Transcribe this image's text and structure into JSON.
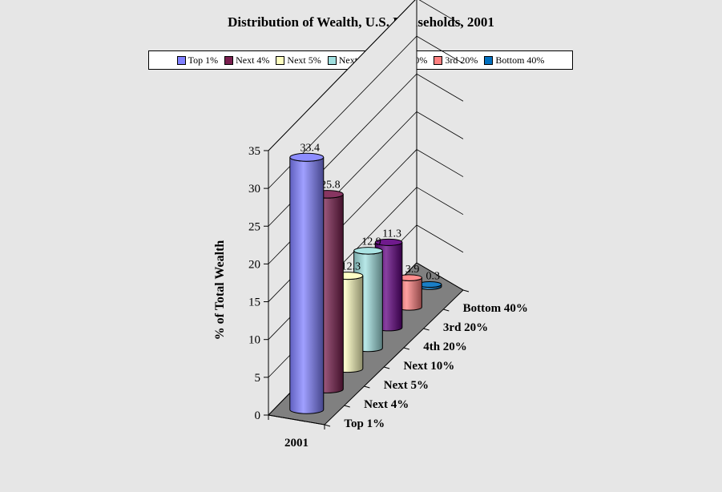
{
  "chart_data": {
    "type": "bar",
    "title": "Distribution of Wealth, U.S. Households, 2001",
    "ylabel": "%   of   Total   Wealth",
    "xlabel": "",
    "x_categories": [
      "2001"
    ],
    "yticks": [
      0,
      5,
      10,
      15,
      20,
      25,
      30,
      35
    ],
    "ylim": [
      0,
      35
    ],
    "legend_position": "top",
    "grid": true,
    "series": [
      {
        "name": "Top 1%",
        "values": [
          33.4
        ],
        "label": "33.4",
        "color": "#8080ff"
      },
      {
        "name": "Next 4%",
        "values": [
          25.8
        ],
        "label": "25.8",
        "color": "#7a1f4f"
      },
      {
        "name": "Next 5%",
        "values": [
          12.3
        ],
        "label": "12.3",
        "color": "#ffffc0"
      },
      {
        "name": "Next 10%",
        "values": [
          12.9
        ],
        "label": "12.9",
        "color": "#a0e0e0"
      },
      {
        "name": "4th 20%",
        "values": [
          11.3
        ],
        "label": "11.3",
        "color": "#600080"
      },
      {
        "name": "3rd 20%",
        "values": [
          3.9
        ],
        "label": "3.9",
        "color": "#ff8080"
      },
      {
        "name": "Bottom 40%",
        "values": [
          0.3
        ],
        "label": "0.3",
        "color": "#0070c0"
      }
    ]
  }
}
